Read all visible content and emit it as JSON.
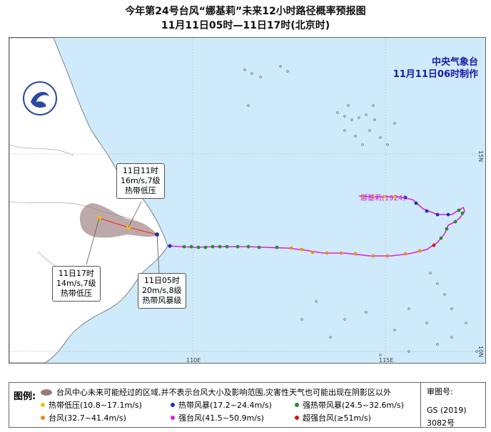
{
  "title": {
    "line1": "今年第24号台风“娜基莉”未来12小时路径概率预报图",
    "line2": "11月11日05时—11日17时(北京时)"
  },
  "agency": {
    "name": "中央气象台",
    "made": "11月11日06时制作"
  },
  "axis_labels": {
    "lat_15n": "15N",
    "lat_10n": "10N",
    "lon_110e": "110E",
    "lon_115e": "115E"
  },
  "storm_label": "娜基莉(1924)",
  "callouts": {
    "c1": {
      "l1": "11日11时",
      "l2": "16m/s,7级",
      "l3": "热带低压"
    },
    "c2": {
      "l1": "11日17时",
      "l2": "14m/s,7级",
      "l3": "热带低压"
    },
    "c3": {
      "l1": "11日05时",
      "l2": "20m/s,8级",
      "l3": "热带风暴级"
    }
  },
  "legend": {
    "title": "图例:",
    "prob_area": "台风中心未来可能经过的区域,并不表示台风大小及影响范围,灾害性天气也可能出现在阴影区以外",
    "items": [
      {
        "label": "热带低压(10.8~17.1m/s)",
        "color": "#f2c200"
      },
      {
        "label": "热带风暴(17.2~24.4m/s)",
        "color": "#1f2fbf"
      },
      {
        "label": "强热带风暴(24.5~32.6m/s)",
        "color": "#2a8a2a"
      },
      {
        "label": "台风(32.7~41.4m/s)",
        "color": "#f08a20"
      },
      {
        "label": "强台风(41.5~50.9m/s)",
        "color": "#e020e0"
      },
      {
        "label": "超强台风(≥51m/s)",
        "color": "#e01010"
      }
    ],
    "review_title": "审图号:",
    "review_no": "GS (2019) 3082号"
  },
  "colors": {
    "sea": "#cfeafa",
    "land": "#ffffff",
    "track": "#e020e0",
    "forecast_track": "#ff2020",
    "agency": "#1a1aa6"
  }
}
